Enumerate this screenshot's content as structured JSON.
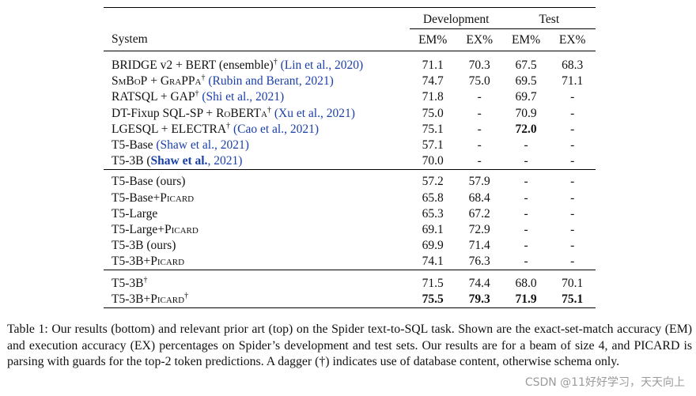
{
  "table": {
    "system_header": "System",
    "groups": [
      "Development",
      "Test"
    ],
    "metrics": [
      "EM%",
      "EX%",
      "EM%",
      "EX%"
    ],
    "prior_rows": [
      {
        "parts": [
          {
            "t": "BRIDGE v2 + BERT (ensemble)"
          },
          {
            "t": "†",
            "sup": true
          },
          {
            "t": " "
          },
          {
            "t": "(Lin et al., 2020)",
            "cite": true
          }
        ],
        "vals": [
          "71.1",
          "70.3",
          "67.5",
          "68.3"
        ]
      },
      {
        "parts": [
          {
            "t": "SmBoP",
            "sc": true
          },
          {
            "t": " + "
          },
          {
            "t": "GraPPa",
            "sc": true
          },
          {
            "t": "†",
            "sup": true
          },
          {
            "t": " "
          },
          {
            "t": "(Rubin and Berant, 2021)",
            "cite": true
          }
        ],
        "vals": [
          "74.7",
          "75.0",
          "69.5",
          "71.1"
        ]
      },
      {
        "parts": [
          {
            "t": "RATSQL + GAP"
          },
          {
            "t": "†",
            "sup": true
          },
          {
            "t": " "
          },
          {
            "t": "(Shi et al., 2021)",
            "cite": true
          }
        ],
        "vals": [
          "71.8",
          "-",
          "69.7",
          "-"
        ]
      },
      {
        "parts": [
          {
            "t": "DT-Fixup SQL-SP + "
          },
          {
            "t": "RoBERTa",
            "sc": true
          },
          {
            "t": "†",
            "sup": true
          },
          {
            "t": " "
          },
          {
            "t": "(Xu et al., 2021)",
            "cite": true
          }
        ],
        "vals": [
          "75.0",
          "-",
          "70.9",
          "-"
        ]
      },
      {
        "parts": [
          {
            "t": "LGESQL + ELECTRA"
          },
          {
            "t": "†",
            "sup": true
          },
          {
            "t": " "
          },
          {
            "t": "(Cao et al., 2021)",
            "cite": true
          }
        ],
        "vals": [
          "75.1",
          "-",
          "72.0",
          "-"
        ],
        "bold": [
          false,
          false,
          true,
          false
        ]
      },
      {
        "parts": [
          {
            "t": "T5-Base "
          },
          {
            "t": "(Shaw et al., 2021)",
            "cite": true
          }
        ],
        "vals": [
          "57.1",
          "-",
          "-",
          "-"
        ]
      },
      {
        "parts": [
          {
            "t": "T5-3B ("
          },
          {
            "t": "Shaw et al.",
            "cite": true,
            "bold": true
          },
          {
            "t": ", 2021)",
            "cite": true
          }
        ],
        "vals": [
          "70.0",
          "-",
          "-",
          "-"
        ]
      }
    ],
    "our_rows": [
      {
        "parts": [
          {
            "t": "T5-Base (ours)"
          }
        ],
        "vals": [
          "57.2",
          "57.9",
          "-",
          "-"
        ]
      },
      {
        "parts": [
          {
            "t": "T5-Base+"
          },
          {
            "t": "Picard",
            "sc": true
          }
        ],
        "vals": [
          "65.8",
          "68.4",
          "-",
          "-"
        ]
      },
      {
        "parts": [
          {
            "t": "T5-Large"
          }
        ],
        "vals": [
          "65.3",
          "67.2",
          "-",
          "-"
        ]
      },
      {
        "parts": [
          {
            "t": "T5-Large+"
          },
          {
            "t": "Picard",
            "sc": true
          }
        ],
        "vals": [
          "69.1",
          "72.9",
          "-",
          "-"
        ]
      },
      {
        "parts": [
          {
            "t": "T5-3B (ours)"
          }
        ],
        "vals": [
          "69.9",
          "71.4",
          "-",
          "-"
        ]
      },
      {
        "parts": [
          {
            "t": "T5-3B+"
          },
          {
            "t": "Picard",
            "sc": true
          }
        ],
        "vals": [
          "74.1",
          "76.3",
          "-",
          "-"
        ]
      }
    ],
    "final_rows": [
      {
        "parts": [
          {
            "t": "T5-3B"
          },
          {
            "t": "†",
            "sup": true
          }
        ],
        "vals": [
          "71.5",
          "74.4",
          "68.0",
          "70.1"
        ]
      },
      {
        "parts": [
          {
            "t": "T5-3B+"
          },
          {
            "t": "Picard",
            "sc": true
          },
          {
            "t": "†",
            "sup": true
          }
        ],
        "vals": [
          "75.5",
          "79.3",
          "71.9",
          "75.1"
        ],
        "bold": [
          true,
          true,
          true,
          true
        ]
      }
    ]
  },
  "caption": {
    "text": "Table 1: Our results (bottom) and relevant prior art (top) on the Spider text-to-SQL task. Shown are the exact-set-match accuracy (EM) and execution accuracy (EX) percentages on Spider’s development and test sets. Our results are for a beam of size 4, and PICARD is parsing with guards for the top-2 token predictions. A dagger (†) indicates use of database content, otherwise schema only."
  },
  "watermark": "CSDN @11好好学习，天天向上"
}
